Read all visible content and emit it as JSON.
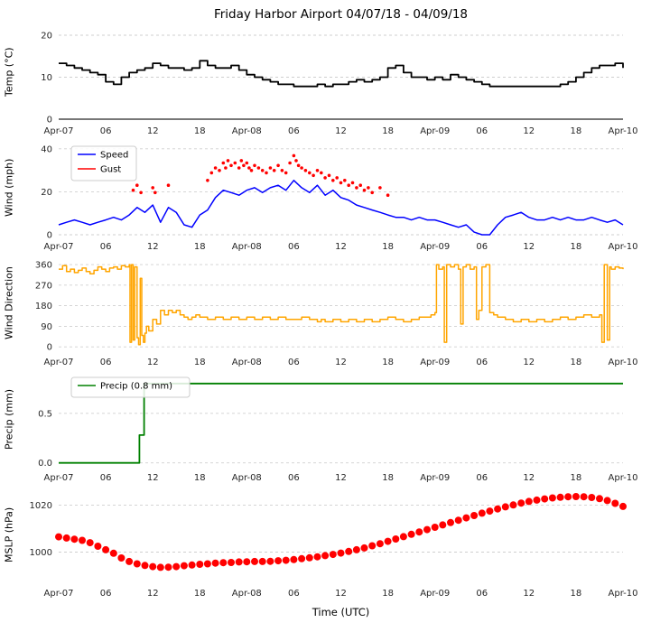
{
  "title": "Friday Harbor Airport 04/07/18 - 04/09/18",
  "x_axis": {
    "label": "Time (UTC)",
    "xlim": [
      0,
      72
    ],
    "tick_values": [
      0,
      6,
      12,
      18,
      24,
      30,
      36,
      42,
      48,
      54,
      60,
      66,
      72
    ],
    "tick_labels": [
      "Apr-07",
      "06",
      "12",
      "18",
      "Apr-08",
      "06",
      "12",
      "18",
      "Apr-09",
      "06",
      "12",
      "18",
      "Apr-10"
    ]
  },
  "colors": {
    "temp": "#000000",
    "wind_speed": "#0000ff",
    "wind_gust": "#ff0000",
    "wind_direction": "#ffa500",
    "precip": "#008000",
    "mslp": "#ff0000",
    "grid": "#cfcfcf"
  },
  "chart_data": [
    {
      "name": "temp",
      "type": "line",
      "ylabel": "Temp (°C)",
      "ylim": [
        0,
        21.5
      ],
      "ytick_values": [
        0,
        10,
        20
      ],
      "ytick_labels": [
        "0",
        "10",
        "20"
      ],
      "bottom_spine": true,
      "series": [
        {
          "name": "Temp",
          "type": "line",
          "step": true,
          "color": "#000000",
          "width": 1.8,
          "x_start": 0,
          "x_step": 1,
          "y": [
            13.3,
            12.8,
            12.2,
            11.7,
            11.1,
            10.6,
            8.9,
            8.3,
            10.0,
            11.1,
            11.7,
            12.2,
            13.3,
            12.8,
            12.2,
            12.2,
            11.7,
            12.2,
            13.9,
            12.8,
            12.2,
            12.2,
            12.8,
            11.7,
            10.6,
            10.0,
            9.4,
            8.9,
            8.3,
            8.3,
            7.8,
            7.8,
            7.8,
            8.3,
            7.8,
            8.3,
            8.3,
            8.9,
            9.4,
            8.9,
            9.4,
            10.0,
            12.2,
            12.8,
            11.1,
            10.0,
            10.0,
            9.4,
            10.0,
            9.4,
            10.6,
            10.0,
            9.4,
            8.9,
            8.3,
            7.8,
            7.8,
            7.8,
            7.8,
            7.8,
            7.8,
            7.8,
            7.8,
            7.8,
            8.3,
            8.9,
            10.0,
            11.1,
            12.2,
            12.8,
            12.8,
            13.3,
            12.2
          ]
        }
      ]
    },
    {
      "name": "wind",
      "type": "line+scatter",
      "ylabel": "Wind (mph)",
      "ylim": [
        0,
        42
      ],
      "ytick_values": [
        0,
        20,
        40
      ],
      "ytick_labels": [
        "0",
        "20",
        "40"
      ],
      "bottom_spine": false,
      "legend": {
        "entries": [
          {
            "label": "Speed",
            "color": "#0000ff"
          },
          {
            "label": "Gust",
            "color": "#ff0000"
          }
        ]
      },
      "series": [
        {
          "name": "Speed",
          "type": "line",
          "step": false,
          "color": "#0000ff",
          "width": 1.5,
          "x_start": 0,
          "x_step": 1,
          "y": [
            4.6,
            5.8,
            6.9,
            5.8,
            4.6,
            5.8,
            6.9,
            8.1,
            6.9,
            9.2,
            12.7,
            10.4,
            13.8,
            5.8,
            12.7,
            10.4,
            4.6,
            3.5,
            9.2,
            11.5,
            17.3,
            20.7,
            19.6,
            18.4,
            20.7,
            21.9,
            19.6,
            21.9,
            23.0,
            20.7,
            25.3,
            21.9,
            19.6,
            23.0,
            18.4,
            20.7,
            17.3,
            16.1,
            13.8,
            12.7,
            11.5,
            10.4,
            9.2,
            8.1,
            8.1,
            6.9,
            8.1,
            6.9,
            6.9,
            5.8,
            4.6,
            3.5,
            4.6,
            1.2,
            0.0,
            0.0,
            4.6,
            8.1,
            9.2,
            10.4,
            8.1,
            6.9,
            6.9,
            8.1,
            6.9,
            8.1,
            6.9,
            6.9,
            8.1,
            6.9,
            5.8,
            6.9,
            4.6
          ]
        },
        {
          "name": "Gust",
          "type": "scatter",
          "color": "#ff0000",
          "marker_radius": 1.8,
          "x": [
            9.5,
            10,
            10.5,
            12,
            12.3,
            14,
            19,
            19.5,
            20,
            20.5,
            21,
            21.3,
            21.6,
            22,
            22.5,
            23,
            23.3,
            23.6,
            24,
            24.3,
            24.6,
            25,
            25.5,
            26,
            26.5,
            27,
            27.5,
            28,
            28.5,
            29,
            29.5,
            30,
            30.3,
            30.6,
            31,
            31.5,
            32,
            32.5,
            33,
            33.5,
            34,
            34.5,
            35,
            35.5,
            36,
            36.5,
            37,
            37.5,
            38,
            38.5,
            39,
            39.5,
            40,
            41,
            42
          ],
          "y": [
            20.7,
            23.0,
            19.6,
            21.9,
            19.6,
            23.0,
            25.3,
            28.8,
            31.1,
            29.9,
            33.4,
            31.1,
            34.5,
            32.2,
            33.4,
            31.1,
            34.5,
            32.2,
            33.4,
            31.1,
            29.9,
            32.2,
            31.1,
            29.9,
            28.8,
            31.1,
            29.9,
            32.2,
            29.9,
            28.8,
            33.4,
            36.8,
            34.5,
            32.2,
            31.1,
            29.9,
            28.8,
            27.6,
            29.9,
            28.8,
            26.5,
            27.6,
            25.3,
            26.5,
            24.2,
            25.3,
            23.0,
            24.2,
            21.9,
            23.0,
            20.7,
            21.9,
            19.6,
            21.9,
            18.4
          ]
        }
      ]
    },
    {
      "name": "wind-direction",
      "type": "line",
      "ylabel": "Wind Direction",
      "ylim": [
        -15,
        380
      ],
      "ytick_values": [
        0,
        90,
        180,
        270,
        360
      ],
      "ytick_labels": [
        "0",
        "90",
        "180",
        "270",
        "360"
      ],
      "bottom_spine": false,
      "series": [
        {
          "name": "Direction",
          "type": "line",
          "step": true,
          "color": "#ffa500",
          "width": 1.5,
          "x": [
            0,
            0.5,
            1,
            1.5,
            2,
            2.5,
            3,
            3.5,
            4,
            4.5,
            5,
            5.5,
            6,
            6.5,
            7,
            7.5,
            8,
            8.5,
            9,
            9.1,
            9.3,
            9.5,
            9.7,
            10,
            10.2,
            10.4,
            10.6,
            10.8,
            11,
            11.2,
            11.5,
            12,
            12.5,
            13,
            13.5,
            14,
            14.5,
            15,
            15.5,
            16,
            16.5,
            17,
            17.5,
            18,
            19,
            20,
            21,
            22,
            23,
            24,
            25,
            26,
            27,
            28,
            29,
            30,
            31,
            32,
            33,
            33.5,
            34,
            35,
            36,
            37,
            38,
            39,
            40,
            41,
            42,
            43,
            44,
            45,
            46,
            47,
            47.5,
            48,
            48.2,
            48.5,
            49,
            49.2,
            49.5,
            50,
            50.5,
            51,
            51.3,
            51.6,
            52,
            52.5,
            53,
            53.3,
            53.6,
            54,
            54.5,
            55,
            55.5,
            56,
            57,
            58,
            59,
            60,
            61,
            62,
            63,
            64,
            65,
            66,
            67,
            68,
            69,
            69.3,
            69.6,
            70,
            70.3,
            70.5,
            71,
            71.5,
            72
          ],
          "y": [
            340,
            355,
            330,
            340,
            325,
            335,
            345,
            330,
            320,
            335,
            350,
            340,
            330,
            345,
            350,
            340,
            355,
            350,
            360,
            20,
            360,
            30,
            350,
            40,
            10,
            300,
            50,
            20,
            60,
            90,
            70,
            120,
            100,
            160,
            140,
            160,
            150,
            160,
            140,
            130,
            120,
            130,
            140,
            130,
            120,
            130,
            120,
            130,
            120,
            130,
            120,
            130,
            120,
            130,
            120,
            120,
            130,
            120,
            110,
            120,
            110,
            120,
            110,
            120,
            110,
            120,
            110,
            120,
            130,
            120,
            110,
            120,
            130,
            130,
            140,
            150,
            360,
            340,
            350,
            20,
            360,
            350,
            360,
            340,
            100,
            350,
            360,
            340,
            350,
            120,
            160,
            350,
            360,
            150,
            140,
            130,
            120,
            110,
            120,
            110,
            120,
            110,
            120,
            130,
            120,
            130,
            140,
            130,
            140,
            20,
            360,
            30,
            350,
            340,
            350,
            345,
            340
          ]
        }
      ]
    },
    {
      "name": "precip",
      "type": "line",
      "ylabel": "Precip (mm)",
      "ylim": [
        -0.03,
        0.88
      ],
      "ytick_values": [
        0.0,
        0.5
      ],
      "ytick_labels": [
        "0.0",
        "0.5"
      ],
      "bottom_spine": false,
      "legend": {
        "entries": [
          {
            "label": "Precip (0.8 mm)",
            "color": "#008000"
          }
        ]
      },
      "series": [
        {
          "name": "Precip",
          "type": "line",
          "step": true,
          "color": "#008000",
          "width": 1.8,
          "x": [
            0,
            10.2,
            10.3,
            10.7,
            10.9,
            72
          ],
          "y": [
            0.0,
            0.0,
            0.28,
            0.28,
            0.8,
            0.8
          ]
        }
      ]
    },
    {
      "name": "mslp",
      "type": "scatter",
      "ylabel": "MSLP (hPa)",
      "ylim": [
        987.5,
        1026
      ],
      "ytick_values": [
        1000,
        1020
      ],
      "ytick_labels": [
        "1000",
        "1020"
      ],
      "bottom_spine": false,
      "series": [
        {
          "name": "MSLP",
          "type": "scatter",
          "color": "#ff0000",
          "marker_radius": 4,
          "x_start": 0,
          "x_step": 1,
          "y": [
            1006.5,
            1006.0,
            1005.5,
            1005.0,
            1004.0,
            1002.5,
            1001.0,
            999.5,
            997.5,
            996.0,
            995.0,
            994.3,
            993.8,
            993.5,
            993.6,
            993.8,
            994.2,
            994.5,
            994.8,
            995.0,
            995.3,
            995.5,
            995.6,
            995.8,
            995.9,
            996.0,
            996.0,
            996.1,
            996.3,
            996.5,
            996.8,
            997.2,
            997.6,
            998.0,
            998.5,
            999.0,
            999.6,
            1000.3,
            1001.0,
            1001.8,
            1002.7,
            1003.6,
            1004.6,
            1005.6,
            1006.6,
            1007.6,
            1008.6,
            1009.6,
            1010.6,
            1011.6,
            1012.6,
            1013.6,
            1014.6,
            1015.6,
            1016.6,
            1017.5,
            1018.4,
            1019.3,
            1020.1,
            1020.9,
            1021.6,
            1022.2,
            1022.7,
            1023.1,
            1023.4,
            1023.6,
            1023.7,
            1023.6,
            1023.3,
            1022.8,
            1022.0,
            1020.8,
            1019.5
          ]
        }
      ]
    }
  ]
}
